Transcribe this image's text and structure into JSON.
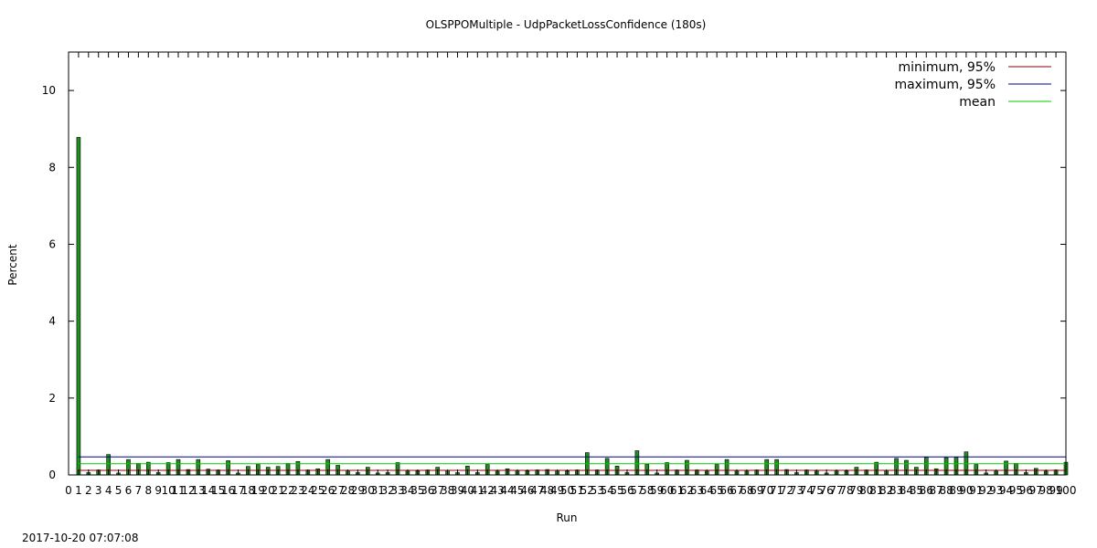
{
  "chart_data": {
    "type": "bar",
    "title": "OLSPPOMultiple - UdpPacketLossConfidence (180s)",
    "xlabel": "Run",
    "ylabel": "Percent",
    "xlim": [
      0,
      100
    ],
    "ylim": [
      0,
      11
    ],
    "y_ticks": [
      0,
      2,
      4,
      6,
      8,
      10
    ],
    "x_ticks": [
      0,
      1,
      2,
      3,
      4,
      5,
      6,
      7,
      8,
      9,
      10,
      11,
      12,
      13,
      14,
      15,
      16,
      17,
      18,
      19,
      20,
      21,
      22,
      23,
      24,
      25,
      26,
      27,
      28,
      29,
      30,
      31,
      32,
      33,
      34,
      35,
      36,
      37,
      38,
      39,
      40,
      41,
      42,
      43,
      44,
      45,
      46,
      47,
      48,
      49,
      50,
      51,
      52,
      53,
      54,
      55,
      56,
      57,
      58,
      59,
      60,
      61,
      62,
      63,
      64,
      65,
      66,
      67,
      68,
      69,
      70,
      71,
      72,
      73,
      74,
      75,
      76,
      77,
      78,
      79,
      80,
      81,
      82,
      83,
      84,
      85,
      86,
      87,
      88,
      89,
      90,
      91,
      92,
      93,
      94,
      95,
      96,
      97,
      98,
      99,
      100
    ],
    "grid": false,
    "legend_position": "top-right",
    "bar_color": "#1f8f1f",
    "series": [
      {
        "name": "bars",
        "x": [
          1,
          2,
          3,
          4,
          5,
          6,
          7,
          8,
          9,
          10,
          11,
          12,
          13,
          14,
          15,
          16,
          17,
          18,
          19,
          20,
          21,
          22,
          23,
          24,
          25,
          26,
          27,
          28,
          29,
          30,
          31,
          32,
          33,
          34,
          35,
          36,
          37,
          38,
          39,
          40,
          41,
          42,
          43,
          44,
          45,
          46,
          47,
          48,
          49,
          50,
          51,
          52,
          53,
          54,
          55,
          56,
          57,
          58,
          59,
          60,
          61,
          62,
          63,
          64,
          65,
          66,
          67,
          68,
          69,
          70,
          71,
          72,
          73,
          74,
          75,
          76,
          77,
          78,
          79,
          80,
          81,
          82,
          83,
          84,
          85,
          86,
          87,
          88,
          89,
          90,
          91,
          92,
          93,
          94,
          95,
          96,
          97,
          98,
          99,
          100
        ],
        "values": [
          8.78,
          0.06,
          0.13,
          0.53,
          0.05,
          0.4,
          0.3,
          0.33,
          0.06,
          0.32,
          0.4,
          0.14,
          0.4,
          0.15,
          0.13,
          0.37,
          0.05,
          0.22,
          0.27,
          0.2,
          0.22,
          0.3,
          0.35,
          0.13,
          0.16,
          0.4,
          0.25,
          0.12,
          0.06,
          0.2,
          0.05,
          0.06,
          0.32,
          0.12,
          0.1,
          0.13,
          0.2,
          0.12,
          0.06,
          0.23,
          0.06,
          0.27,
          0.12,
          0.16,
          0.12,
          0.1,
          0.13,
          0.14,
          0.12,
          0.1,
          0.13,
          0.58,
          0.13,
          0.43,
          0.23,
          0.06,
          0.63,
          0.28,
          0.05,
          0.32,
          0.13,
          0.38,
          0.13,
          0.12,
          0.27,
          0.4,
          0.12,
          0.12,
          0.13,
          0.4,
          0.4,
          0.14,
          0.06,
          0.13,
          0.12,
          0.05,
          0.12,
          0.1,
          0.2,
          0.13,
          0.33,
          0.12,
          0.43,
          0.38,
          0.2,
          0.46,
          0.16,
          0.45,
          0.46,
          0.6,
          0.27,
          0.05,
          0.12,
          0.36,
          0.3,
          0.06,
          0.17,
          0.12,
          0.13,
          0.33
        ]
      }
    ],
    "reference_lines": [
      {
        "name": "minimum, 95%",
        "value": 0.12,
        "color": "#8b0000"
      },
      {
        "name": "maximum, 95%",
        "value": 0.47,
        "color": "#00008b"
      },
      {
        "name": "mean",
        "value": 0.29,
        "color": "#00cc00"
      }
    ]
  },
  "timestamp": "2017-10-20 07:07:08"
}
